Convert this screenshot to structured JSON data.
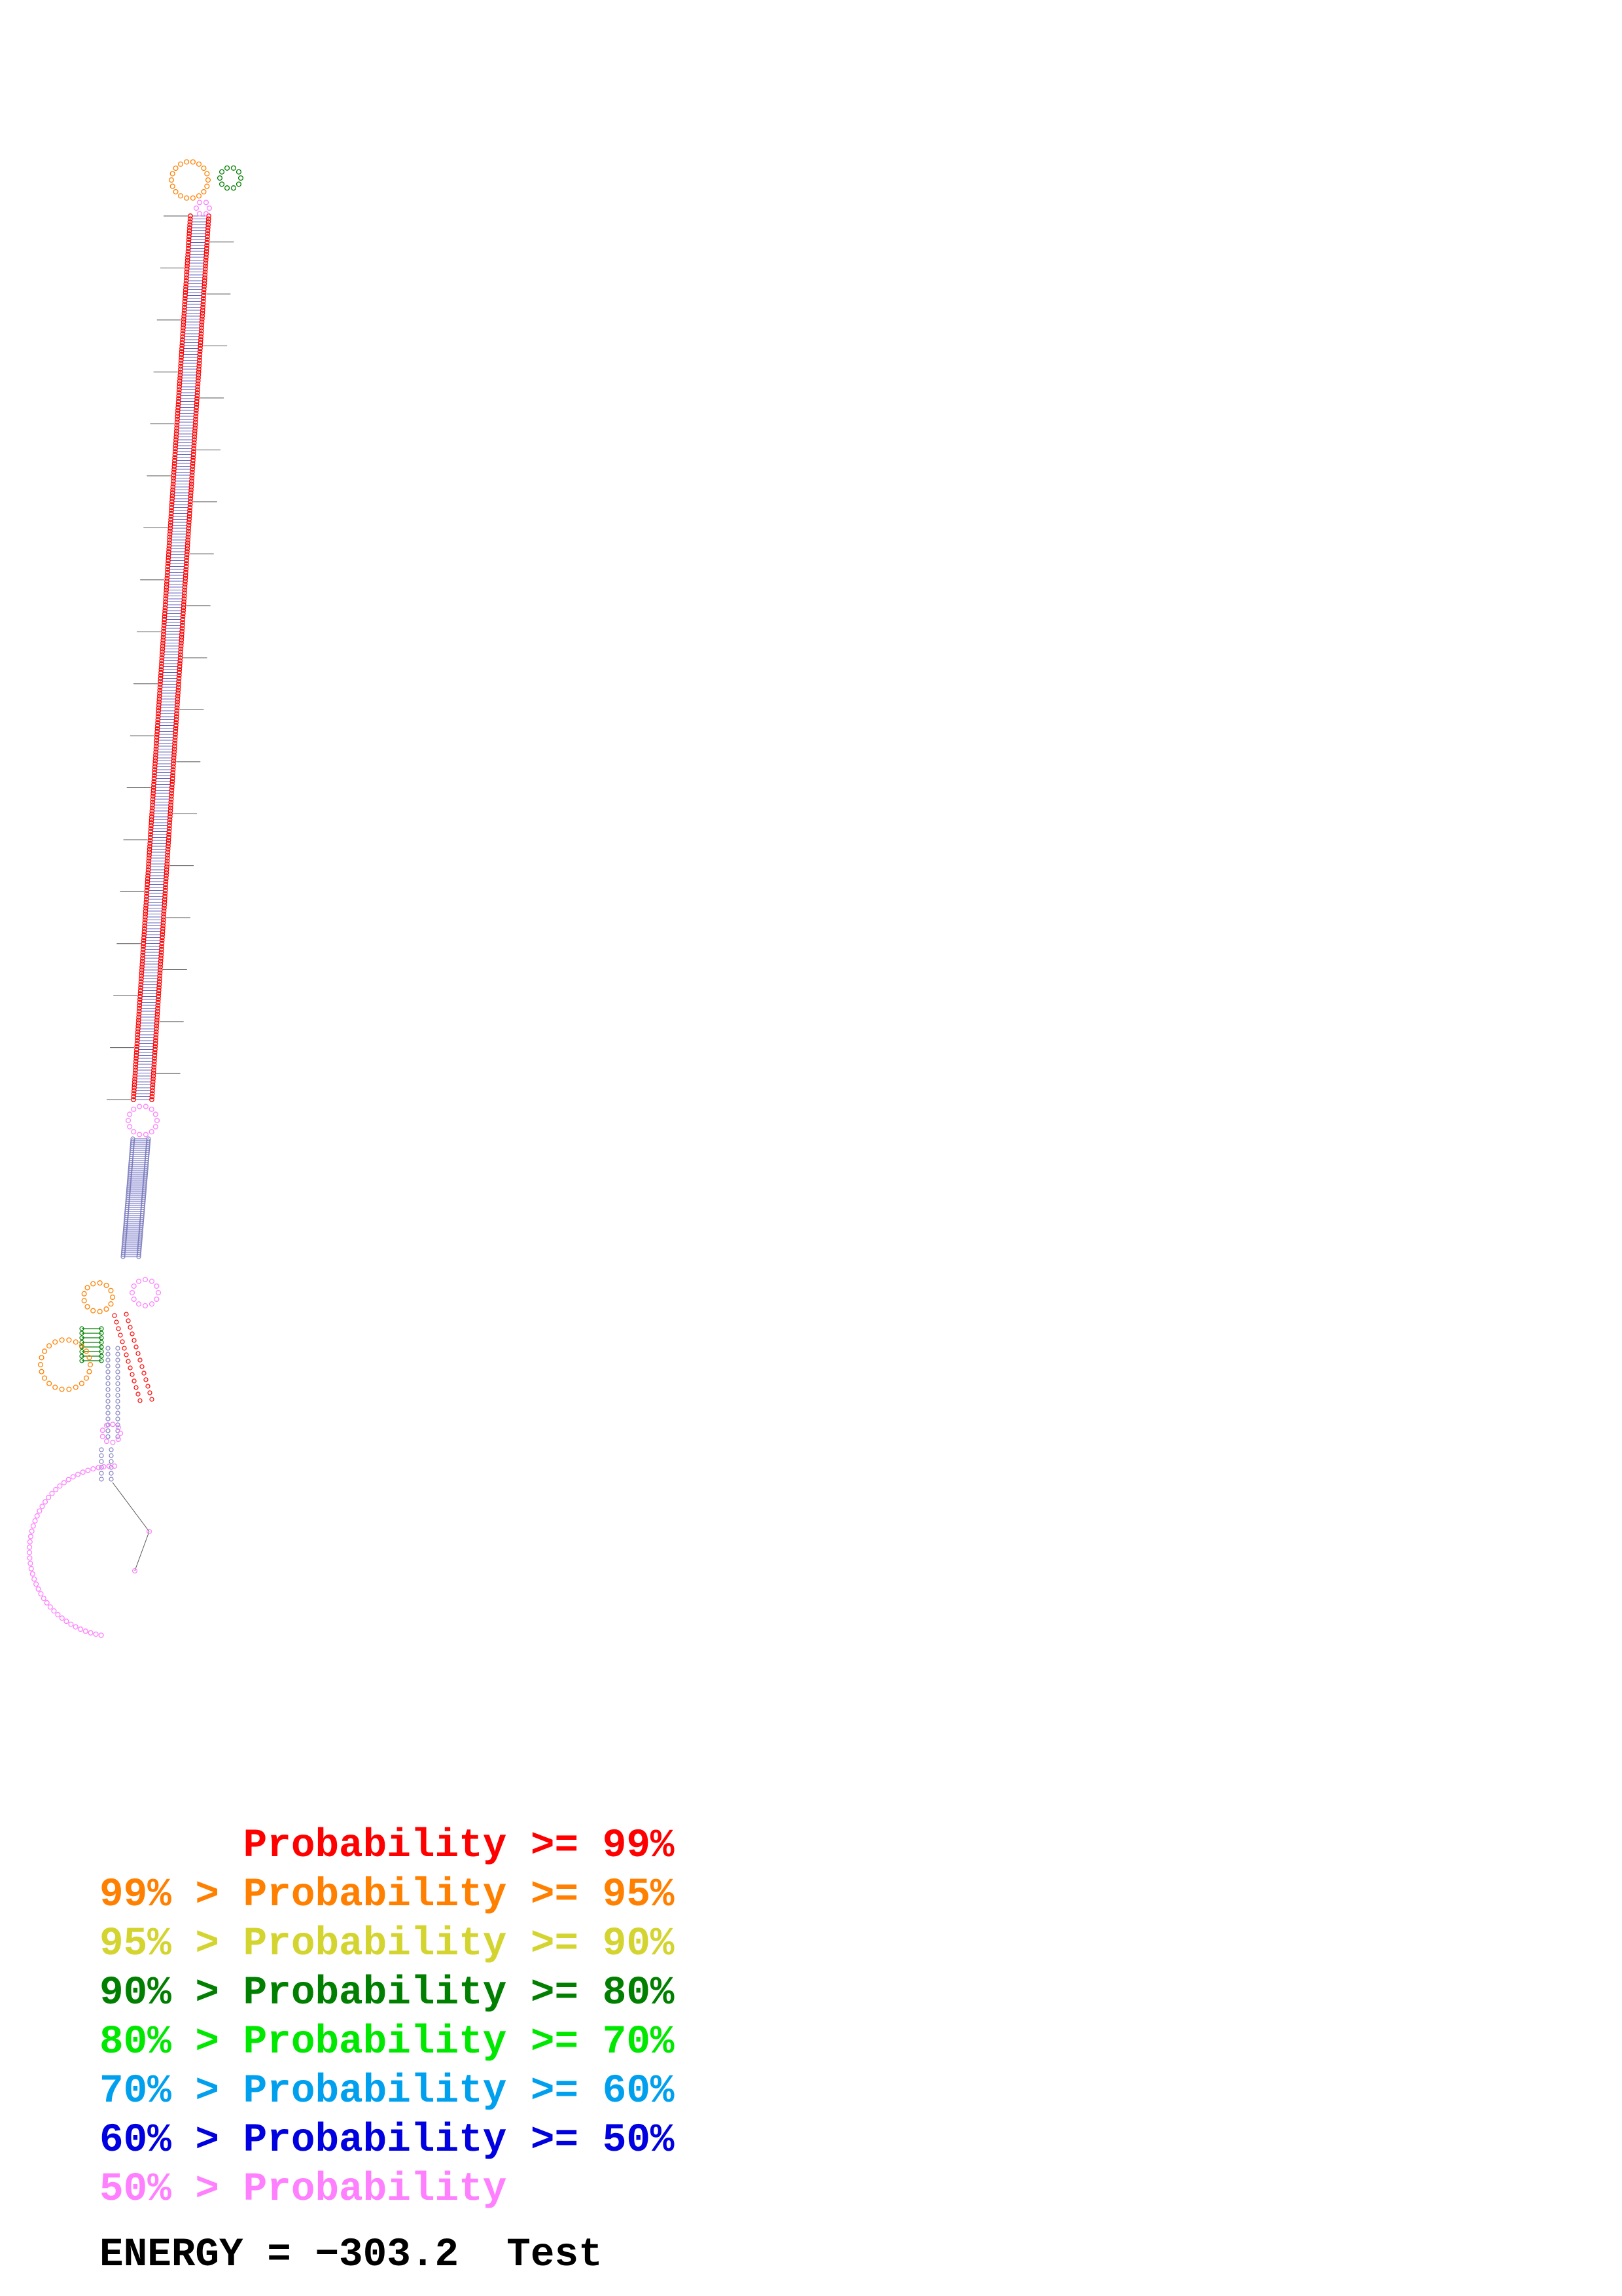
{
  "legend": [
    {
      "text": "      Probability >= 99%",
      "color": "#ff0000"
    },
    {
      "text": "99% > Probability >= 95%",
      "color": "#ff8000"
    },
    {
      "text": "95% > Probability >= 90%",
      "color": "#d4d430"
    },
    {
      "text": "90% > Probability >= 80%",
      "color": "#007f00"
    },
    {
      "text": "80% > Probability >= 70%",
      "color": "#00e800"
    },
    {
      "text": "70% > Probability >= 60%",
      "color": "#00a0ee"
    },
    {
      "text": "60% > Probability >= 50%",
      "color": "#0000e0"
    },
    {
      "text": "50% > Probability",
      "color": "#ff80ff"
    }
  ],
  "energy_label": "ENERGY = −303.2  Test",
  "colors": {
    "backbone": "#333333",
    "pair_line": "#6060c0",
    "high": "#ff0000",
    "mid": "#ff8000",
    "low": "#ff80ff",
    "green": "#007f00"
  }
}
